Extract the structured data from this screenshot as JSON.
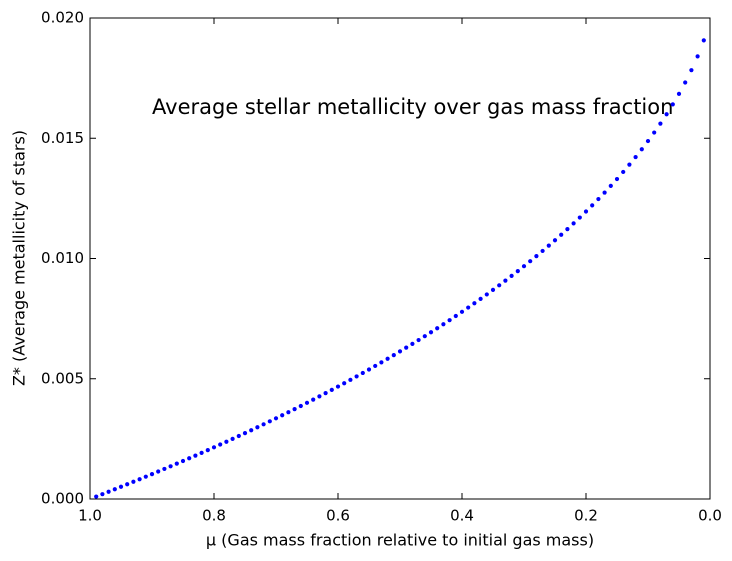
{
  "chart_data": {
    "type": "scatter",
    "title": "Average stellar metallicity over gas mass fraction",
    "xlabel": "μ (Gas mass fraction relative to initial gas mass)",
    "ylabel": "Z* (Average metallicity of stars)",
    "color": "#0000ff",
    "grid": false,
    "xlim": [
      1.0,
      0.0
    ],
    "ylim": [
      0,
      0.02
    ],
    "xticks": [
      {
        "value": 1,
        "label": "1.0"
      },
      {
        "value": 0.8,
        "label": "0.8"
      },
      {
        "value": 0.6,
        "label": "0.6"
      },
      {
        "value": 0.4,
        "label": "0.4"
      },
      {
        "value": 0.2,
        "label": "0.2"
      },
      {
        "value": 0,
        "label": "0.0"
      }
    ],
    "yticks": [
      {
        "value": 0,
        "label": "0.000"
      },
      {
        "value": 0.005,
        "label": "0.005"
      },
      {
        "value": 0.01,
        "label": "0.010"
      },
      {
        "value": 0.015,
        "label": "0.015"
      },
      {
        "value": 0.02,
        "label": "0.020"
      }
    ],
    "x": [
      0.99,
      0.98,
      0.97,
      0.96,
      0.95,
      0.94,
      0.93,
      0.92,
      0.91,
      0.9,
      0.89,
      0.88,
      0.87,
      0.86,
      0.85,
      0.84,
      0.83,
      0.82,
      0.81,
      0.8,
      0.79,
      0.78,
      0.77,
      0.76,
      0.75,
      0.74,
      0.73,
      0.72,
      0.71,
      0.7,
      0.69,
      0.68,
      0.67,
      0.66,
      0.65,
      0.64,
      0.63,
      0.62,
      0.61,
      0.6,
      0.59,
      0.58,
      0.57,
      0.56,
      0.55,
      0.54,
      0.53,
      0.52,
      0.51,
      0.5,
      0.49,
      0.48,
      0.47,
      0.46,
      0.45,
      0.44,
      0.43,
      0.42,
      0.41,
      0.4,
      0.39,
      0.38,
      0.37,
      0.36,
      0.35,
      0.34,
      0.33,
      0.32,
      0.31,
      0.3,
      0.29,
      0.28,
      0.27,
      0.26,
      0.25,
      0.24,
      0.23,
      0.22,
      0.21,
      0.2,
      0.19,
      0.18,
      0.17,
      0.16,
      0.15,
      0.14,
      0.13,
      0.12,
      0.11,
      0.1,
      0.09,
      0.08,
      0.07,
      0.06,
      0.05,
      0.04,
      0.03,
      0.02,
      0.01
    ],
    "values": [
      0.000101,
      0.000201,
      0.000303,
      0.000405,
      0.000509,
      0.000612,
      0.000717,
      0.000822,
      0.000928,
      0.001035,
      0.001143,
      0.001251,
      0.00136,
      0.00147,
      0.001581,
      0.001693,
      0.001805,
      0.001919,
      0.002033,
      0.002149,
      0.002265,
      0.002382,
      0.0025,
      0.002619,
      0.002739,
      0.00286,
      0.002982,
      0.003105,
      0.00323,
      0.003355,
      0.003482,
      0.003609,
      0.003738,
      0.003868,
      0.003999,
      0.004132,
      0.004266,
      0.004401,
      0.004537,
      0.004675,
      0.004814,
      0.004955,
      0.005097,
      0.005241,
      0.005386,
      0.005533,
      0.005682,
      0.005832,
      0.005983,
      0.006137,
      0.006293,
      0.00645,
      0.006609,
      0.00677,
      0.006934,
      0.007099,
      0.007266,
      0.007436,
      0.007608,
      0.007783,
      0.00796,
      0.008139,
      0.008321,
      0.008506,
      0.008694,
      0.008885,
      0.009079,
      0.009276,
      0.009476,
      0.00968,
      0.009888,
      0.010099,
      0.010315,
      0.010534,
      0.010758,
      0.010987,
      0.01122,
      0.011459,
      0.011703,
      0.011953,
      0.012209,
      0.012472,
      0.012741,
      0.013019,
      0.013304,
      0.013599,
      0.013903,
      0.014217,
      0.014544,
      0.014883,
      0.015237,
      0.015607,
      0.015997,
      0.016408,
      0.016847,
      0.017318,
      0.017831,
      0.018403,
      0.01907
    ]
  }
}
